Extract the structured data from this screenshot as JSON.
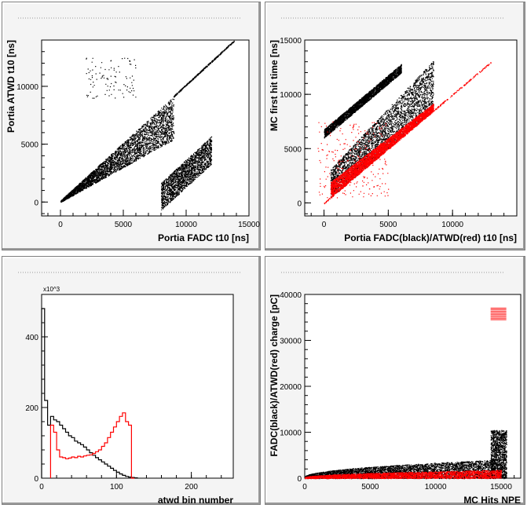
{
  "colors": {
    "background": "#f4f4f4",
    "frame": "#ffffff",
    "black_series": "#000000",
    "red_series": "#ff0000"
  },
  "chart_data": [
    {
      "id": "atwd_vs_fadc",
      "type": "scatter",
      "xlabel": "Portia FADC t10 [ns]",
      "ylabel": "Portia ATWD t10 [ns]",
      "xlim": [
        -1500,
        15000
      ],
      "ylim": [
        -1200,
        14000
      ],
      "xticks": [
        0,
        5000,
        10000,
        15000
      ],
      "yticks": [
        0,
        5000,
        10000
      ],
      "grid": false,
      "series": [
        {
          "color": "#000000",
          "regions": [
            {
              "shape": "band",
              "x": [
                0,
                9000
              ],
              "lower_slope": 0.6,
              "lower_offset": 0,
              "upper_slope": 1.0,
              "upper_offset": 150,
              "density": 0.9
            },
            {
              "shape": "band",
              "x": [
                8000,
                12000
              ],
              "lower_slope": 1.0,
              "lower_offset": -8700,
              "upper_slope": 1.0,
              "upper_offset": -6300,
              "density": 0.5
            },
            {
              "shape": "line",
              "x": [
                9000,
                13800
              ],
              "slope": 1.0,
              "offset": 150
            },
            {
              "shape": "cloud",
              "x": [
                2000,
                6000
              ],
              "y": [
                9000,
                12500
              ],
              "density": 0.05
            }
          ]
        }
      ]
    },
    {
      "id": "mc_first_hit_vs_t10",
      "type": "scatter",
      "xlabel": "Portia FADC(black)/ATWD(red) t10 [ns]",
      "ylabel": "MC first hit time [ns]",
      "xlim": [
        -1500,
        15000
      ],
      "ylim": [
        -1200,
        15000
      ],
      "xticks": [
        0,
        5000,
        10000
      ],
      "yticks": [
        0,
        5000,
        10000,
        15000
      ],
      "grid": false,
      "series": [
        {
          "name": "FADC",
          "color": "#000000",
          "regions": [
            {
              "shape": "band",
              "x": [
                500,
                8500
              ],
              "lower_slope": 1.0,
              "lower_offset": 0,
              "upper_slope": 1.25,
              "upper_offset": 2500,
              "density": 0.85
            },
            {
              "shape": "band",
              "x": [
                0,
                6000
              ],
              "lower_slope": 1.0,
              "lower_offset": 6000,
              "upper_slope": 1.0,
              "upper_offset": 6800,
              "density": 0.7
            }
          ]
        },
        {
          "name": "ATWD",
          "color": "#ff0000",
          "regions": [
            {
              "shape": "band",
              "x": [
                500,
                8500
              ],
              "lower_slope": 1.0,
              "lower_offset": 0,
              "upper_slope": 0.9,
              "upper_offset": 1500,
              "density": 0.9
            },
            {
              "shape": "line",
              "x": [
                0,
                13000
              ],
              "slope": 1.0,
              "offset": 0
            },
            {
              "shape": "cloud",
              "x": [
                -500,
                5000
              ],
              "y": [
                500,
                7500
              ],
              "density": 0.12
            }
          ]
        }
      ]
    },
    {
      "id": "atwd_bin_histogram",
      "type": "histogram",
      "xlabel": "atwd bin number",
      "ylabel": "",
      "y_multiplier": "x10^3",
      "xlim": [
        0,
        256
      ],
      "ylim": [
        0,
        520
      ],
      "xticks": [
        0,
        100,
        200
      ],
      "yticks": [
        0,
        200,
        400
      ],
      "bin_width": 4,
      "series": [
        {
          "name": "FADC",
          "color": "#000000",
          "x_start": 0,
          "values": [
            480,
            220,
            150,
            175,
            165,
            160,
            150,
            140,
            130,
            120,
            115,
            105,
            100,
            95,
            88,
            80,
            72,
            65,
            58,
            52,
            46,
            40,
            34,
            28,
            22,
            17,
            12,
            8,
            5,
            3,
            2,
            1
          ]
        },
        {
          "name": "ATWD",
          "color": "#ff0000",
          "x_start": 12,
          "values": [
            150,
            130,
            80,
            60,
            58,
            55,
            57,
            60,
            58,
            62,
            60,
            63,
            65,
            66,
            70,
            75,
            80,
            90,
            100,
            115,
            130,
            145,
            160,
            175,
            185,
            160,
            150,
            0
          ]
        }
      ]
    },
    {
      "id": "charge_vs_npe",
      "type": "scatter",
      "xlabel": "MC Hits NPE",
      "ylabel": "FADC(black)/ATWD(red) charge [pC]",
      "xlim": [
        0,
        16500
      ],
      "ylim": [
        0,
        40000
      ],
      "xticks": [
        0,
        5000,
        10000,
        15000
      ],
      "yticks": [
        0,
        10000,
        20000,
        30000,
        40000
      ],
      "grid": false,
      "series": [
        {
          "name": "FADC",
          "color": "#000000",
          "regions": [
            {
              "shape": "curve_band",
              "x": [
                0,
                14500
              ],
              "y_top_at_start": 300,
              "y_top_at_end": 4000,
              "density": 0.9
            },
            {
              "shape": "box",
              "x": [
                14200,
                15400
              ],
              "y": [
                0,
                10500
              ],
              "density": 0.8
            }
          ]
        },
        {
          "name": "ATWD",
          "color": "#ff0000",
          "regions": [
            {
              "shape": "curve_band",
              "x": [
                0,
                15000
              ],
              "y_top_at_start": 200,
              "y_top_at_end": 1800,
              "density": 0.6
            },
            {
              "shape": "stripes",
              "x": [
                14200,
                15400
              ],
              "y": [
                34500,
                37000
              ],
              "count": 8
            }
          ]
        }
      ]
    }
  ]
}
